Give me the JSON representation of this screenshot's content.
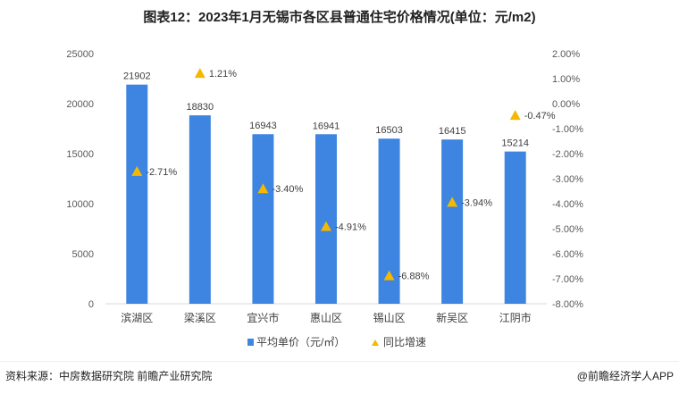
{
  "chart_data": {
    "type": "bar",
    "title": "图表12：2023年1月无锡市各区县普通住宅价格情况(单位：元/m2)",
    "categories": [
      "滨湖区",
      "梁溪区",
      "宜兴市",
      "惠山区",
      "锡山区",
      "新吴区",
      "江阴市"
    ],
    "series": [
      {
        "name": "平均单价（元/㎡）",
        "type": "bar",
        "axis": "left",
        "color": "#3d85e0",
        "values": [
          21902,
          18830,
          16943,
          16941,
          16503,
          16415,
          15214
        ]
      },
      {
        "name": "同比增速",
        "type": "scatter",
        "axis": "right",
        "color": "#f5b800",
        "values": [
          -2.71,
          1.21,
          -3.4,
          -4.91,
          -6.88,
          -3.94,
          -0.47
        ],
        "labels": [
          "-2.71%",
          "1.21%",
          "-3.40%",
          "-4.91%",
          "-6.88%",
          "-3.94%",
          "-0.47%"
        ]
      }
    ],
    "ylim": [
      0,
      25000
    ],
    "yticks": [
      "0",
      "5000",
      "10000",
      "15000",
      "20000",
      "25000"
    ],
    "y2lim": [
      -8,
      2
    ],
    "y2ticks": [
      "-8.00%",
      "-7.00%",
      "-6.00%",
      "-5.00%",
      "-4.00%",
      "-3.00%",
      "-2.00%",
      "-1.00%",
      "0.00%",
      "1.00%",
      "2.00%"
    ],
    "legend": "bottom",
    "grid": false
  },
  "source": "资料来源：中房数据研究院 前瞻产业研究院",
  "credit": "@前瞻经济学人APP"
}
